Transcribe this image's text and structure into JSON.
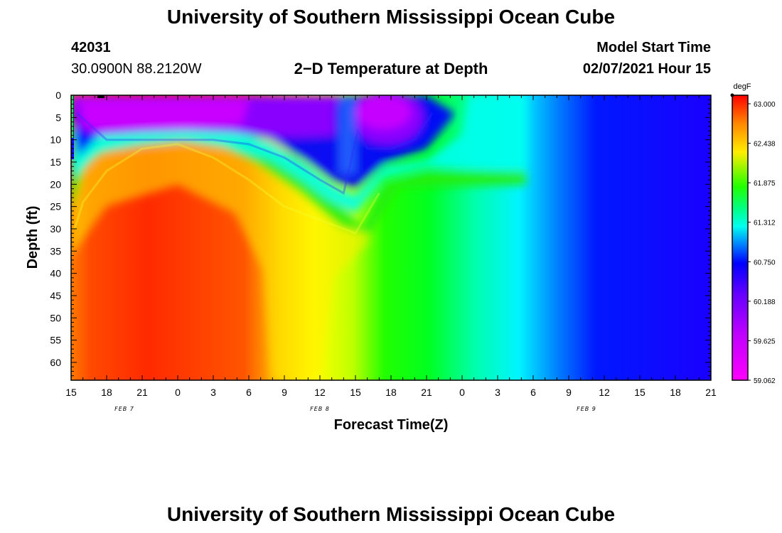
{
  "header": {
    "title_top": "University of Southern Mississippi Ocean Cube",
    "station_id": "42031",
    "station_coords": "30.0900N 88.2120W",
    "plot_title": "2−D Temperature at Depth",
    "model_label": "Model Start Time",
    "model_time": "02/07/2021 Hour 15",
    "title_bottom": "University of Southern Mississippi Ocean Cube"
  },
  "chart_data": {
    "type": "heatmap",
    "title": "2−D Temperature at Depth",
    "xlabel": "Forecast Time(Z)",
    "ylabel": "Depth (ft)",
    "x_tick_labels": [
      "15",
      "18",
      "21",
      "0",
      "3",
      "6",
      "9",
      "12",
      "15",
      "18",
      "21",
      "0",
      "3",
      "6",
      "9",
      "12",
      "15",
      "18",
      "21"
    ],
    "x_range_hours": [
      0,
      54
    ],
    "date_labels": [
      {
        "text": "FEB 7",
        "hour": 4.5
      },
      {
        "text": "FEB 8",
        "hour": 21
      },
      {
        "text": "FEB 9",
        "hour": 43.5
      }
    ],
    "y_tick_labels": [
      "0",
      "5",
      "10",
      "15",
      "20",
      "25",
      "30",
      "35",
      "40",
      "45",
      "50",
      "55",
      "60"
    ],
    "ylim": [
      0,
      64
    ],
    "colorbar": {
      "unit": "degF",
      "tick_labels": [
        "63.000",
        "62.438",
        "61.875",
        "61.312",
        "60.750",
        "60.188",
        "59.625",
        "59.062"
      ],
      "range": [
        59.062,
        63.0
      ]
    },
    "surface_layer": [
      {
        "hour": 0.5,
        "depth": 4
      },
      {
        "hour": 3,
        "depth": 10
      },
      {
        "hour": 6,
        "depth": 10
      },
      {
        "hour": 9,
        "depth": 10
      },
      {
        "hour": 12,
        "depth": 10
      },
      {
        "hour": 15,
        "depth": 11
      },
      {
        "hour": 18,
        "depth": 14
      },
      {
        "hour": 21,
        "depth": 19
      },
      {
        "hour": 23,
        "depth": 22
      },
      {
        "hour": 24.2,
        "depth": 8
      },
      {
        "hour": 25,
        "depth": 12
      },
      {
        "hour": 27,
        "depth": 12
      },
      {
        "hour": 29,
        "depth": 10
      },
      {
        "hour": 30.5,
        "depth": 4
      }
    ],
    "thermocline": [
      {
        "hour": 0.3,
        "depth": 30
      },
      {
        "hour": 1,
        "depth": 24
      },
      {
        "hour": 3,
        "depth": 17
      },
      {
        "hour": 6,
        "depth": 12
      },
      {
        "hour": 9,
        "depth": 11
      },
      {
        "hour": 12,
        "depth": 14
      },
      {
        "hour": 15,
        "depth": 19
      },
      {
        "hour": 18,
        "depth": 25
      },
      {
        "hour": 21,
        "depth": 28
      },
      {
        "hour": 24,
        "depth": 31
      },
      {
        "hour": 26,
        "depth": 22
      }
    ]
  }
}
